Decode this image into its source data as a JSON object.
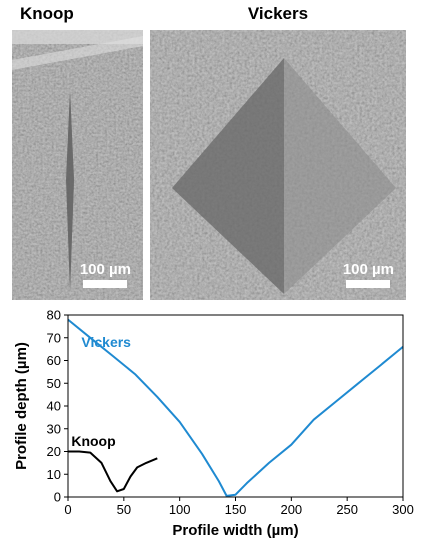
{
  "panels": {
    "knoop_title": "Knoop",
    "vickers_title": "Vickers",
    "knoop_scalebar": "100 µm",
    "vickers_scalebar": "100 µm"
  },
  "chart_data": {
    "type": "line",
    "title": "",
    "xlabel": "Profile width (µm)",
    "ylabel": "Profile depth (µm)",
    "xlim": [
      0,
      300
    ],
    "ylim": [
      0,
      80
    ],
    "xticks": [
      0,
      50,
      100,
      150,
      200,
      250,
      300
    ],
    "yticks": [
      0,
      10,
      20,
      30,
      40,
      50,
      60,
      70,
      80
    ],
    "grid": false,
    "legend": "inline labels",
    "series": [
      {
        "name": "Vickers",
        "color": "#1f8ad1",
        "x": [
          0,
          20,
          40,
          60,
          80,
          100,
          120,
          135,
          142,
          150,
          160,
          180,
          200,
          220,
          240,
          260,
          280,
          295,
          300
        ],
        "y": [
          78,
          70,
          62,
          54,
          44,
          33,
          19,
          7,
          0.5,
          1,
          6,
          15,
          23,
          34,
          42,
          50,
          58,
          64,
          66
        ]
      },
      {
        "name": "Knoop",
        "color": "#000000",
        "x": [
          0,
          10,
          20,
          30,
          38,
          44,
          50,
          56,
          62,
          70,
          80
        ],
        "y": [
          20,
          20,
          19.5,
          15,
          7,
          2.5,
          3.5,
          9,
          13,
          15,
          17
        ]
      }
    ]
  }
}
